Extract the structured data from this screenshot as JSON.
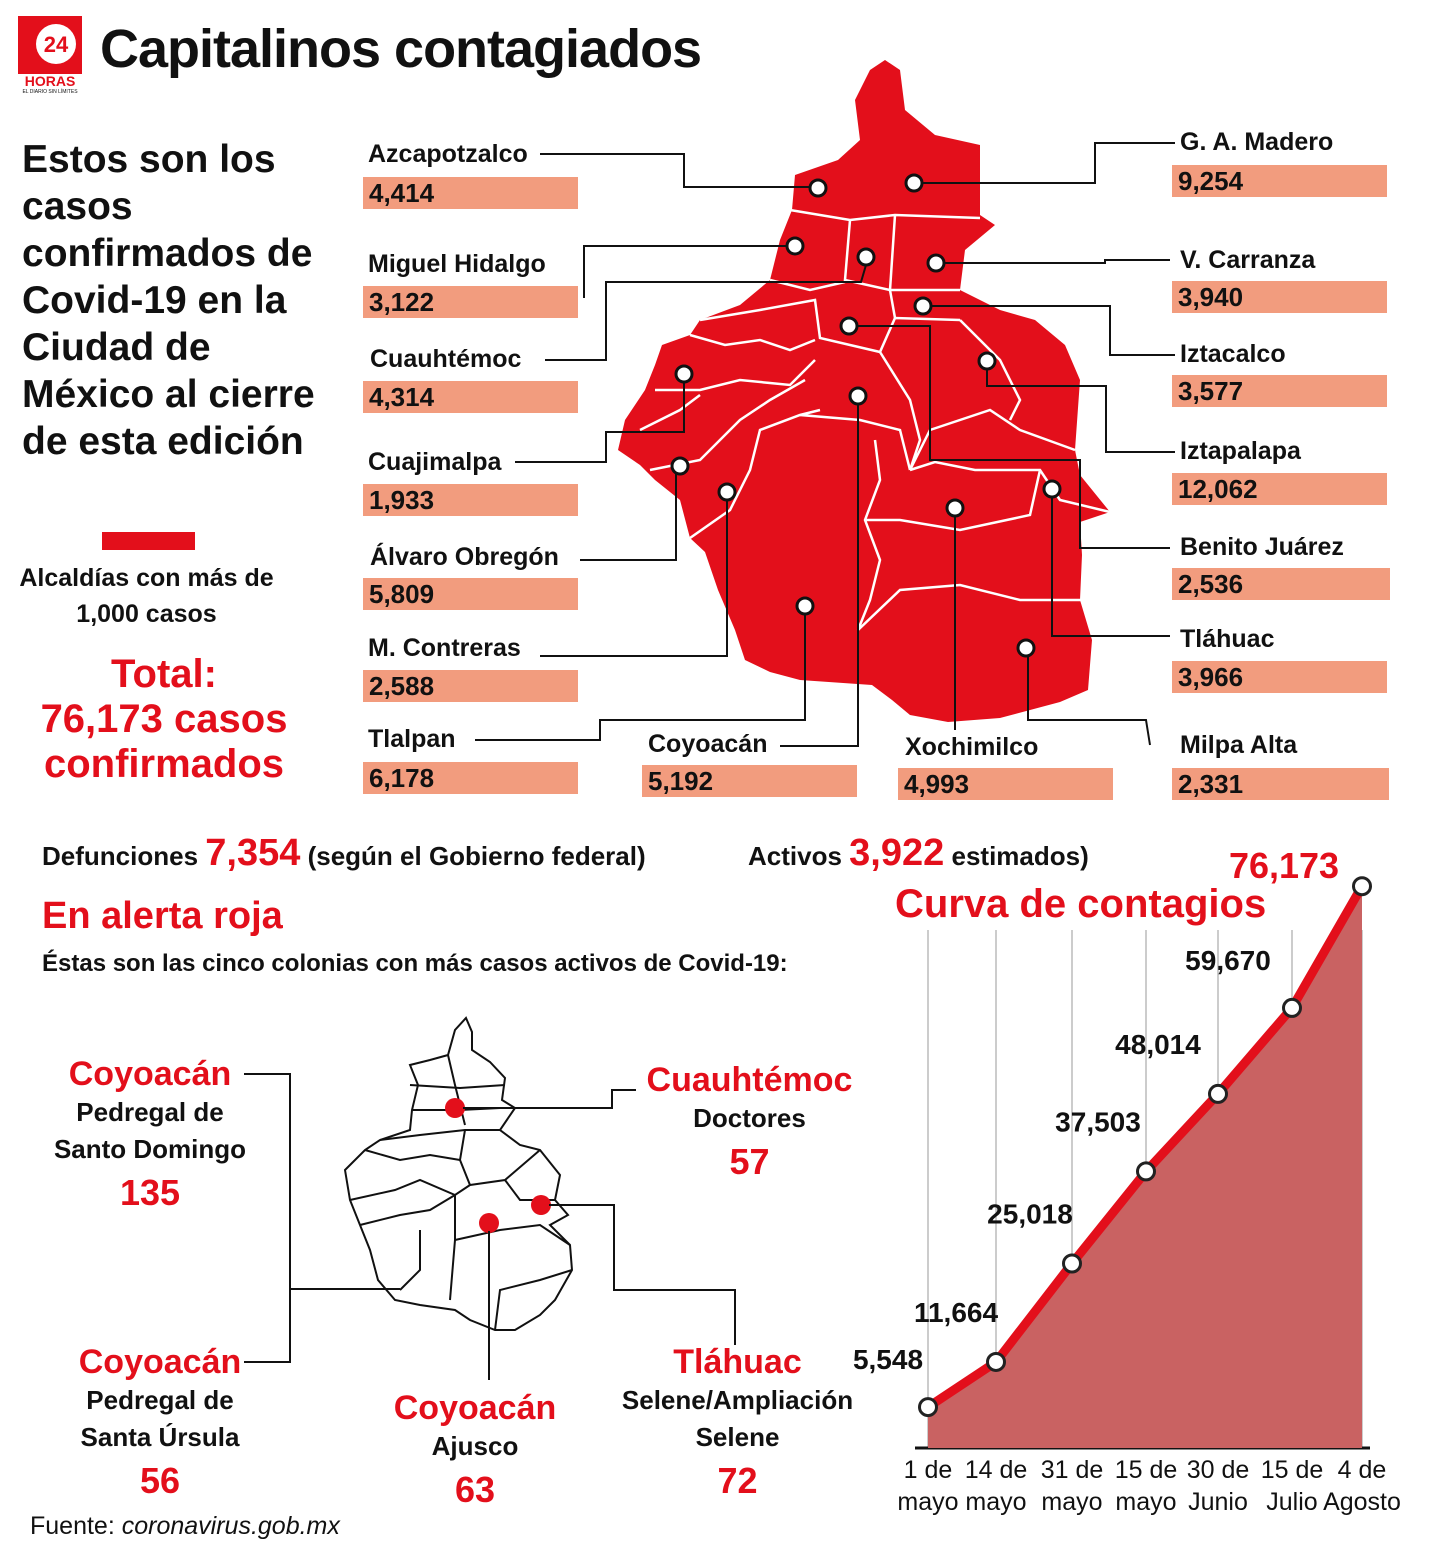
{
  "header": {
    "title": "Capitalinos contagiados",
    "logo_text": "24 HORAS",
    "logo_tagline": "EL DIARIO SIN LÍMITES"
  },
  "intro": "Estos son los casos confirmados de Covid-19 en la Ciudad de México al cierre de esta edición",
  "legend": {
    "text": "Alcaldías con más de 1,000 casos",
    "color": "#e30f1b"
  },
  "total": {
    "line1": "Total:",
    "line2": "76,173 casos",
    "line3": "confirmados"
  },
  "boroughs": [
    {
      "name": "Azcapotzalco",
      "cases": "4,414"
    },
    {
      "name": "Miguel Hidalgo",
      "cases": "3,122"
    },
    {
      "name": "Cuauhtémoc",
      "cases": "4,314"
    },
    {
      "name": "Cuajimalpa",
      "cases": "1,933"
    },
    {
      "name": "Álvaro Obregón",
      "cases": "5,809"
    },
    {
      "name": "M. Contreras",
      "cases": "2,588"
    },
    {
      "name": "Tlalpan",
      "cases": "6,178"
    },
    {
      "name": "Coyoacán",
      "cases": "5,192"
    },
    {
      "name": "Xochimilco",
      "cases": "4,993"
    },
    {
      "name": "G. A. Madero",
      "cases": "9,254"
    },
    {
      "name": "V. Carranza",
      "cases": "3,940"
    },
    {
      "name": "Iztacalco",
      "cases": "3,577"
    },
    {
      "name": "Iztapalapa",
      "cases": "12,062"
    },
    {
      "name": "Benito Juárez",
      "cases": "2,536"
    },
    {
      "name": "Tláhuac",
      "cases": "3,966"
    },
    {
      "name": "Milpa Alta",
      "cases": "2,331"
    }
  ],
  "stats": {
    "deaths_label": "Defunciones",
    "deaths": "7,354",
    "deaths_note": "(según el Gobierno federal)",
    "active_label": "Activos",
    "active": "3,922",
    "active_note": "estimados)"
  },
  "alert": {
    "title": "En alerta roja",
    "subtitle": "Éstas son las cinco colonias con más casos activos de Covid-19:",
    "colonias": [
      {
        "alcaldia": "Coyoacán",
        "name": "Pedregal de Santo Domingo",
        "cases": "135"
      },
      {
        "alcaldia": "Cuauhtémoc",
        "name": "Doctores",
        "cases": "57"
      },
      {
        "alcaldia": "Coyoacán",
        "name": "Pedregal de Santa Úrsula",
        "cases": "56"
      },
      {
        "alcaldia": "Coyoacán",
        "name": "Ajusco",
        "cases": "63"
      },
      {
        "alcaldia": "Tláhuac",
        "name": "Selene/Ampliación Selene",
        "cases": "72"
      }
    ]
  },
  "source": {
    "label": "Fuente:",
    "value": "coronavirus.gob.mx"
  },
  "colors": {
    "accent": "#e30f1b",
    "box": "#f29c7e",
    "area": "#c96262"
  },
  "chart_data": {
    "type": "area",
    "title": "Curva de contagios",
    "categories": [
      "1 de mayo",
      "14 de mayo",
      "31 de mayo",
      "15 de mayo",
      "30 de Junio",
      "15 de Julio",
      "4 de Agosto"
    ],
    "series": [
      {
        "values": [
          5548,
          11664,
          25018,
          37503,
          48014,
          59670,
          76173
        ],
        "labels": [
          "5,548",
          "11,664",
          "25,018",
          "37,503",
          "48,014",
          "59,670",
          "76,173"
        ]
      }
    ],
    "ylim": [
      0,
      80000
    ],
    "grid": "vertical"
  }
}
